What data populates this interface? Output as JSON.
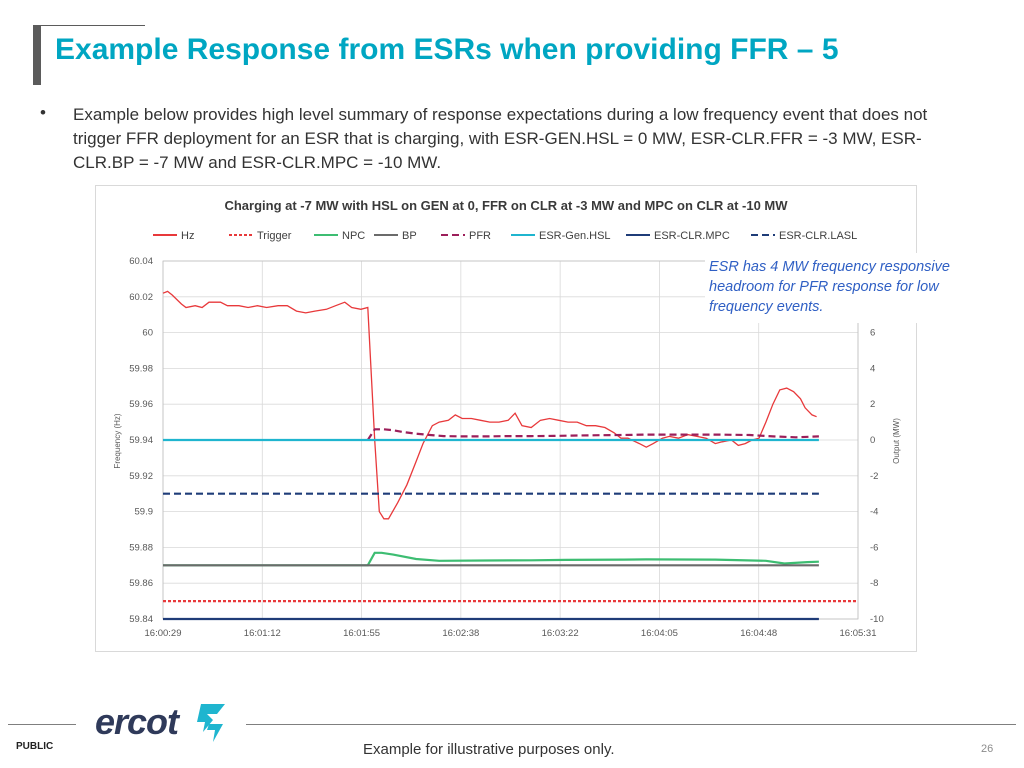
{
  "slide": {
    "title": "Example Response from ESRs when providing FFR – 5",
    "bullet": "Example below provides high level summary of response expectations during a low frequency event that does not trigger FFR deployment for an ESR that is charging, with ESR-GEN.HSL = 0 MW, ESR-CLR.FFR = -3 MW, ESR-CLR.BP = -7 MW and ESR-CLR.MPC = -10 MW.",
    "bullet_marker": "•",
    "callout": "ESR has 4 MW frequency responsive headroom for PFR response for low frequency events.",
    "footer_label": "PUBLIC",
    "footnote": "Example for illustrative purposes only.",
    "page_number": "26",
    "logo_text": "ercot",
    "logo_icon": "ercot-bolt-icon"
  },
  "chart_data": {
    "type": "line",
    "title": "Charging at -7 MW with HSL on GEN at 0, FFR on CLR at -3 MW and MPC on CLR at -10 MW",
    "ylabel": "Frequency (Hz)",
    "y2label": "Output (MW)",
    "xlabel": "",
    "x_ticks": [
      "16:00:29",
      "16:01:12",
      "16:01:55",
      "16:02:38",
      "16:03:22",
      "16:04:05",
      "16:04:48",
      "16:05:31"
    ],
    "y_ticks": [
      "60.04",
      "60.02",
      "60",
      "59.98",
      "59.96",
      "59.94",
      "59.92",
      "59.9",
      "59.88",
      "59.86",
      "59.84"
    ],
    "y2_ticks": [
      "6",
      "4",
      "2",
      "0",
      "-2",
      "-4",
      "-6",
      "-8",
      "-10"
    ],
    "ylim": [
      59.84,
      60.04
    ],
    "y2lim": [
      -10,
      10
    ],
    "xlim_seconds": [
      0,
      302
    ],
    "grid": true,
    "legend_position": "top",
    "series": [
      {
        "name": "Hz",
        "axis": "left",
        "color": "#e8393b",
        "dash": "solid",
        "points": [
          [
            0,
            60.022
          ],
          [
            2,
            60.023
          ],
          [
            4,
            60.021
          ],
          [
            8,
            60.016
          ],
          [
            10,
            60.014
          ],
          [
            14,
            60.015
          ],
          [
            17,
            60.014
          ],
          [
            20,
            60.017
          ],
          [
            25,
            60.017
          ],
          [
            28,
            60.015
          ],
          [
            33,
            60.015
          ],
          [
            37,
            60.014
          ],
          [
            41,
            60.015
          ],
          [
            45,
            60.014
          ],
          [
            50,
            60.015
          ],
          [
            54,
            60.015
          ],
          [
            58,
            60.012
          ],
          [
            62,
            60.011
          ],
          [
            66,
            60.012
          ],
          [
            71,
            60.013
          ],
          [
            75,
            60.015
          ],
          [
            79,
            60.017
          ],
          [
            82,
            60.014
          ],
          [
            86,
            60.013
          ],
          [
            89,
            60.014
          ],
          [
            92,
            59.94
          ],
          [
            94,
            59.9
          ],
          [
            96,
            59.896
          ],
          [
            98,
            59.896
          ],
          [
            102,
            59.905
          ],
          [
            106,
            59.915
          ],
          [
            110,
            59.928
          ],
          [
            113,
            59.938
          ],
          [
            117,
            59.948
          ],
          [
            120,
            59.95
          ],
          [
            124,
            59.951
          ],
          [
            127,
            59.954
          ],
          [
            130,
            59.952
          ],
          [
            134,
            59.952
          ],
          [
            138,
            59.951
          ],
          [
            142,
            59.95
          ],
          [
            146,
            59.95
          ],
          [
            150,
            59.951
          ],
          [
            153,
            59.955
          ],
          [
            156,
            59.948
          ],
          [
            160,
            59.947
          ],
          [
            164,
            59.951
          ],
          [
            168,
            59.952
          ],
          [
            172,
            59.951
          ],
          [
            176,
            59.95
          ],
          [
            180,
            59.95
          ],
          [
            184,
            59.948
          ],
          [
            188,
            59.948
          ],
          [
            192,
            59.947
          ],
          [
            196,
            59.944
          ],
          [
            199,
            59.941
          ],
          [
            202,
            59.941
          ],
          [
            207,
            59.938
          ],
          [
            210,
            59.936
          ],
          [
            213,
            59.938
          ],
          [
            217,
            59.941
          ],
          [
            220,
            59.942
          ],
          [
            224,
            59.941
          ],
          [
            228,
            59.943
          ],
          [
            232,
            59.942
          ],
          [
            236,
            59.941
          ],
          [
            240,
            59.938
          ],
          [
            243,
            59.939
          ],
          [
            247,
            59.94
          ],
          [
            250,
            59.937
          ],
          [
            253,
            59.938
          ],
          [
            256,
            59.94
          ],
          [
            259,
            59.941
          ],
          [
            262,
            59.95
          ],
          [
            265,
            59.96
          ],
          [
            268,
            59.968
          ],
          [
            271,
            59.969
          ],
          [
            274,
            59.967
          ],
          [
            277,
            59.963
          ],
          [
            279,
            59.958
          ],
          [
            282,
            59.954
          ],
          [
            284,
            59.953
          ]
        ]
      },
      {
        "name": "Trigger",
        "axis": "left",
        "color": "#e8393b",
        "dash": "short",
        "points": [
          [
            0,
            59.85
          ],
          [
            302,
            59.85
          ]
        ]
      },
      {
        "name": "NPC",
        "axis": "right",
        "color": "#3dbd72",
        "dash": "solid",
        "points": [
          [
            0,
            -7.0
          ],
          [
            89,
            -7.0
          ],
          [
            92,
            -6.3
          ],
          [
            95,
            -6.3
          ],
          [
            100,
            -6.4
          ],
          [
            110,
            -6.65
          ],
          [
            120,
            -6.75
          ],
          [
            140,
            -6.73
          ],
          [
            160,
            -6.72
          ],
          [
            175,
            -6.7
          ],
          [
            200,
            -6.68
          ],
          [
            210,
            -6.67
          ],
          [
            240,
            -6.68
          ],
          [
            262,
            -6.75
          ],
          [
            270,
            -6.9
          ],
          [
            280,
            -6.82
          ],
          [
            285,
            -6.8
          ]
        ]
      },
      {
        "name": "BP",
        "axis": "right",
        "color": "#6b6b6b",
        "dash": "solid",
        "points": [
          [
            0,
            -7.0
          ],
          [
            285,
            -7.0
          ]
        ]
      },
      {
        "name": "PFR",
        "axis": "right",
        "color": "#9c1f5a",
        "dash": "long",
        "points": [
          [
            89,
            0.0
          ],
          [
            92,
            0.6
          ],
          [
            96,
            0.6
          ],
          [
            100,
            0.55
          ],
          [
            104,
            0.45
          ],
          [
            110,
            0.35
          ],
          [
            116,
            0.28
          ],
          [
            122,
            0.22
          ],
          [
            130,
            0.2
          ],
          [
            140,
            0.2
          ],
          [
            150,
            0.22
          ],
          [
            160,
            0.22
          ],
          [
            170,
            0.23
          ],
          [
            180,
            0.25
          ],
          [
            190,
            0.27
          ],
          [
            200,
            0.28
          ],
          [
            210,
            0.3
          ],
          [
            220,
            0.3
          ],
          [
            240,
            0.3
          ],
          [
            255,
            0.28
          ],
          [
            265,
            0.2
          ],
          [
            275,
            0.15
          ],
          [
            285,
            0.2
          ]
        ]
      },
      {
        "name": "ESR-Gen.HSL",
        "axis": "right",
        "color": "#1fb5cf",
        "dash": "solid",
        "points": [
          [
            0,
            0.0
          ],
          [
            285,
            0.0
          ]
        ]
      },
      {
        "name": "ESR-CLR.MPC",
        "axis": "right",
        "color": "#1f3c78",
        "dash": "solid",
        "points": [
          [
            0,
            -10.0
          ],
          [
            285,
            -10.0
          ]
        ]
      },
      {
        "name": "ESR-CLR.LASL",
        "axis": "right",
        "color": "#1f3c78",
        "dash": "long",
        "points": [
          [
            0,
            -3.0
          ],
          [
            285,
            -3.0
          ]
        ]
      }
    ]
  }
}
